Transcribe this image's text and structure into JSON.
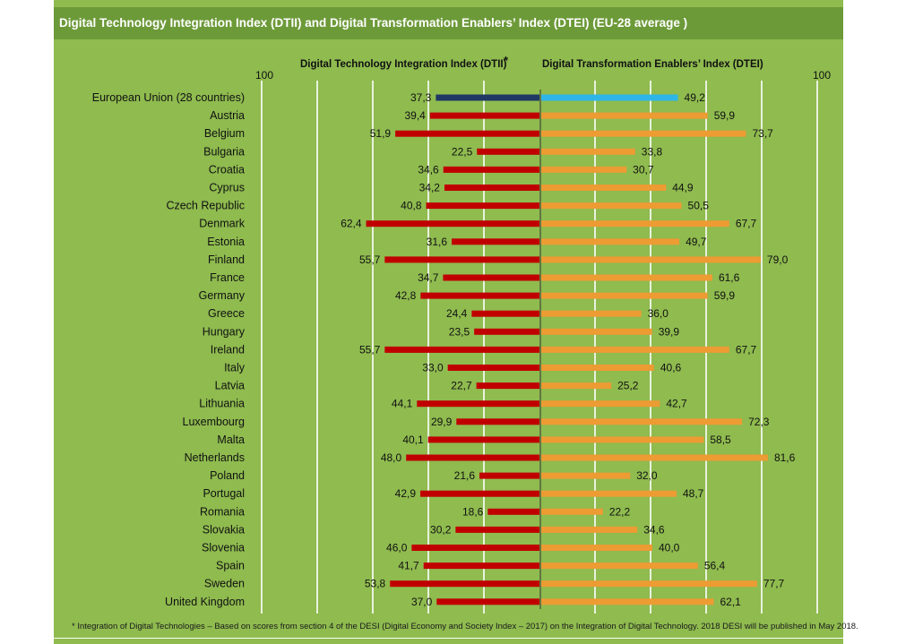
{
  "title": "Digital Technology Integration Index (DTII) and Digital Transformation Enablers’ Index (DTEI) (EU-28 average )",
  "footnote": "* Integration of Digital Technologies – Based on scores from section 4 of the DESI (Digital Economy and Society Index – 2017) on the Integration of Digital Technology. 2018 DESI will be published in May 2018.",
  "colors": {
    "background": "#8fbb4f",
    "title_bar": "#6d9a39",
    "dtii_eu": "#1f3864",
    "dtei_eu": "#2eb6e8",
    "dtii": "#c00000",
    "dtei": "#ed9b33",
    "gridline": "#ffffff"
  },
  "chart_data": {
    "type": "bar",
    "orientation": "horizontal",
    "layout": "diverging",
    "xlim": [
      0,
      100
    ],
    "grid": true,
    "left_header": "Digital Technology Integration Index (DTII)",
    "left_header_mark": " *",
    "right_header": "Digital Transformation Enablers’ Index (DTEI)",
    "left_max_label": "100",
    "right_max_label": "100",
    "categories": [
      "European Union (28 countries)",
      "Austria",
      "Belgium",
      "Bulgaria",
      "Croatia",
      "Cyprus",
      "Czech Republic",
      "Denmark",
      "Estonia",
      "Finland",
      "France",
      "Germany",
      "Greece",
      "Hungary",
      "Ireland",
      "Italy",
      "Latvia",
      "Lithuania",
      "Luxembourg",
      "Malta",
      "Netherlands",
      "Poland",
      "Portugal",
      "Romania",
      "Slovakia",
      "Slovenia",
      "Spain",
      "Sweden",
      "United Kingdom"
    ],
    "series": [
      {
        "name": "Digital Technology Integration Index (DTII)",
        "side": "left",
        "values": [
          37.3,
          39.4,
          51.9,
          22.5,
          34.6,
          34.2,
          40.8,
          62.4,
          31.6,
          55.7,
          34.7,
          42.8,
          24.4,
          23.5,
          55.7,
          33.0,
          22.7,
          44.1,
          29.9,
          40.1,
          48.0,
          21.6,
          42.9,
          18.6,
          30.2,
          46.0,
          41.7,
          53.8,
          37.0
        ],
        "labels": [
          "37,3",
          "39,4",
          "51,9",
          "22,5",
          "34,6",
          "34,2",
          "40,8",
          "62,4",
          "31,6",
          "55,7",
          "34,7",
          "42,8",
          "24,4",
          "23,5",
          "55,7",
          "33,0",
          "22,7",
          "44,1",
          "29,9",
          "40,1",
          "48,0",
          "21,6",
          "42,9",
          "18,6",
          "30,2",
          "46,0",
          "41,7",
          "53,8",
          "37,0"
        ]
      },
      {
        "name": "Digital Transformation Enablers’ Index (DTEI)",
        "side": "right",
        "values": [
          49.2,
          59.9,
          73.7,
          33.8,
          30.7,
          44.9,
          50.5,
          67.7,
          49.7,
          79.0,
          61.6,
          59.9,
          36.0,
          39.9,
          67.7,
          40.6,
          25.2,
          42.7,
          72.3,
          58.5,
          81.6,
          32.0,
          48.7,
          22.2,
          34.6,
          40.0,
          56.4,
          77.7,
          62.1
        ],
        "labels": [
          "49,2",
          "59,9",
          "73,7",
          "33,8",
          "30,7",
          "44,9",
          "50,5",
          "67,7",
          "49,7",
          "79,0",
          "61,6",
          "59,9",
          "36,0",
          "39,9",
          "67,7",
          "40,6",
          "25,2",
          "42,7",
          "72,3",
          "58,5",
          "81,6",
          "32,0",
          "48,7",
          "22,2",
          "34,6",
          "40,0",
          "56,4",
          "77,7",
          "62,1"
        ]
      }
    ]
  }
}
